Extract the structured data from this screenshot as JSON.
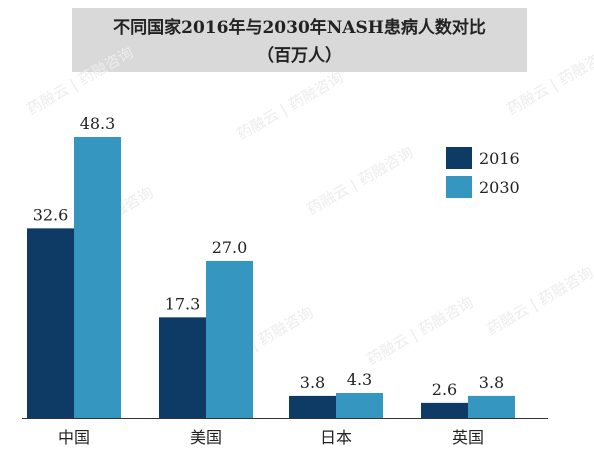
{
  "title": {
    "line1": "不同国家2016年与2030年NASH患病人数对比",
    "line2": "（百万人）"
  },
  "watermark_text": "药融云 | 药融咨询",
  "colors": {
    "series_2016": "#0d3b66",
    "series_2030": "#3597c0",
    "axis": "#333333",
    "title_bg": "#d9d9d9"
  },
  "chart_data": {
    "type": "bar",
    "title": "不同国家2016年与2030年NASH患病人数对比（百万人）",
    "categories": [
      "中国",
      "美国",
      "日本",
      "英国"
    ],
    "series": [
      {
        "name": "2016",
        "values": [
          32.6,
          17.3,
          3.8,
          2.6
        ]
      },
      {
        "name": "2030",
        "values": [
          48.3,
          27.0,
          4.3,
          3.8
        ]
      }
    ],
    "value_labels": [
      [
        "32.6",
        "17.3",
        "3.8",
        "2.6"
      ],
      [
        "48.3",
        "27.0",
        "4.3",
        "3.8"
      ]
    ],
    "ylim": [
      0,
      48.3
    ],
    "legend_position": "right",
    "grid": false,
    "xlabel": "",
    "ylabel": ""
  }
}
